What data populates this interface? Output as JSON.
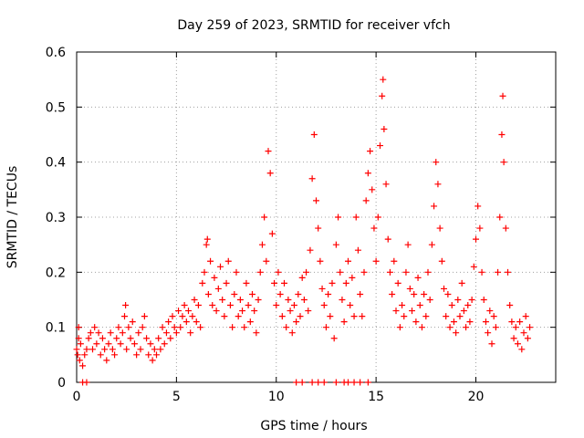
{
  "chart_data": {
    "type": "scatter",
    "title": "Day 259 of 2023, SRMTID for receiver vfch",
    "xlabel": "GPS time / hours",
    "ylabel": "SRMTID / TECUs",
    "xlim": [
      0,
      24
    ],
    "ylim": [
      0,
      0.6
    ],
    "x_ticks": [
      {
        "value": 0,
        "label": "0"
      },
      {
        "value": 5,
        "label": "5"
      },
      {
        "value": 10,
        "label": "10"
      },
      {
        "value": 15,
        "label": "15"
      },
      {
        "value": 20,
        "label": "20"
      }
    ],
    "y_ticks": [
      {
        "value": 0,
        "label": "0"
      },
      {
        "value": 0.1,
        "label": "0.1"
      },
      {
        "value": 0.2,
        "label": "0.2"
      },
      {
        "value": 0.3,
        "label": "0.3"
      },
      {
        "value": 0.4,
        "label": "0.4"
      },
      {
        "value": 0.5,
        "label": "0.5"
      },
      {
        "value": 0.6,
        "label": "0.6"
      }
    ],
    "grid": true,
    "marker": "+",
    "marker_color": "#ff0000",
    "series": [
      {
        "name": "SRMTID",
        "points": [
          [
            0.0,
            0.06
          ],
          [
            0.05,
            0.05
          ],
          [
            0.1,
            0.08
          ],
          [
            0.1,
            0.1
          ],
          [
            0.15,
            0.04
          ],
          [
            0.2,
            0.07
          ],
          [
            0.3,
            0.03
          ],
          [
            0.4,
            0.05
          ],
          [
            0.5,
            0.06
          ],
          [
            0.6,
            0.08
          ],
          [
            0.7,
            0.09
          ],
          [
            0.8,
            0.06
          ],
          [
            0.9,
            0.1
          ],
          [
            1.0,
            0.07
          ],
          [
            1.1,
            0.09
          ],
          [
            1.2,
            0.05
          ],
          [
            1.3,
            0.08
          ],
          [
            1.4,
            0.06
          ],
          [
            1.5,
            0.04
          ],
          [
            1.6,
            0.07
          ],
          [
            1.7,
            0.09
          ],
          [
            1.8,
            0.06
          ],
          [
            1.9,
            0.05
          ],
          [
            2.0,
            0.08
          ],
          [
            2.1,
            0.1
          ],
          [
            2.2,
            0.07
          ],
          [
            2.3,
            0.09
          ],
          [
            2.4,
            0.12
          ],
          [
            2.45,
            0.14
          ],
          [
            2.5,
            0.06
          ],
          [
            2.6,
            0.1
          ],
          [
            2.7,
            0.08
          ],
          [
            2.8,
            0.11
          ],
          [
            2.9,
            0.07
          ],
          [
            3.0,
            0.05
          ],
          [
            3.1,
            0.09
          ],
          [
            3.2,
            0.06
          ],
          [
            3.3,
            0.1
          ],
          [
            3.4,
            0.12
          ],
          [
            3.5,
            0.08
          ],
          [
            3.6,
            0.05
          ],
          [
            3.7,
            0.07
          ],
          [
            3.8,
            0.04
          ],
          [
            3.9,
            0.06
          ],
          [
            4.0,
            0.05
          ],
          [
            4.1,
            0.08
          ],
          [
            4.2,
            0.06
          ],
          [
            4.3,
            0.1
          ],
          [
            4.4,
            0.07
          ],
          [
            4.5,
            0.09
          ],
          [
            4.6,
            0.11
          ],
          [
            4.7,
            0.08
          ],
          [
            4.8,
            0.12
          ],
          [
            4.9,
            0.1
          ],
          [
            5.0,
            0.09
          ],
          [
            5.1,
            0.13
          ],
          [
            5.2,
            0.1
          ],
          [
            5.3,
            0.12
          ],
          [
            5.4,
            0.14
          ],
          [
            5.5,
            0.11
          ],
          [
            5.6,
            0.13
          ],
          [
            5.7,
            0.09
          ],
          [
            5.8,
            0.12
          ],
          [
            5.9,
            0.15
          ],
          [
            6.0,
            0.11
          ],
          [
            6.1,
            0.14
          ],
          [
            6.2,
            0.1
          ],
          [
            6.3,
            0.18
          ],
          [
            6.4,
            0.2
          ],
          [
            6.5,
            0.25
          ],
          [
            6.55,
            0.26
          ],
          [
            6.6,
            0.16
          ],
          [
            6.7,
            0.22
          ],
          [
            6.8,
            0.14
          ],
          [
            6.9,
            0.19
          ],
          [
            7.0,
            0.13
          ],
          [
            7.1,
            0.17
          ],
          [
            7.2,
            0.21
          ],
          [
            7.3,
            0.15
          ],
          [
            7.4,
            0.12
          ],
          [
            7.5,
            0.18
          ],
          [
            7.6,
            0.22
          ],
          [
            7.7,
            0.14
          ],
          [
            7.8,
            0.1
          ],
          [
            7.9,
            0.16
          ],
          [
            8.0,
            0.2
          ],
          [
            8.1,
            0.12
          ],
          [
            8.2,
            0.15
          ],
          [
            8.3,
            0.13
          ],
          [
            8.4,
            0.1
          ],
          [
            8.5,
            0.18
          ],
          [
            8.6,
            0.14
          ],
          [
            8.7,
            0.11
          ],
          [
            8.8,
            0.16
          ],
          [
            8.9,
            0.13
          ],
          [
            9.0,
            0.09
          ],
          [
            9.1,
            0.15
          ],
          [
            9.2,
            0.2
          ],
          [
            9.3,
            0.25
          ],
          [
            9.4,
            0.3
          ],
          [
            9.5,
            0.22
          ],
          [
            9.6,
            0.42
          ],
          [
            9.7,
            0.38
          ],
          [
            9.8,
            0.27
          ],
          [
            9.9,
            0.18
          ],
          [
            10.0,
            0.14
          ],
          [
            10.1,
            0.2
          ],
          [
            10.2,
            0.16
          ],
          [
            10.3,
            0.12
          ],
          [
            10.4,
            0.18
          ],
          [
            10.5,
            0.1
          ],
          [
            10.6,
            0.15
          ],
          [
            10.7,
            0.13
          ],
          [
            10.8,
            0.09
          ],
          [
            10.9,
            0.14
          ],
          [
            11.0,
            0.11
          ],
          [
            11.1,
            0.16
          ],
          [
            11.2,
            0.12
          ],
          [
            11.3,
            0.19
          ],
          [
            11.4,
            0.15
          ],
          [
            11.5,
            0.2
          ],
          [
            11.6,
            0.13
          ],
          [
            11.7,
            0.24
          ],
          [
            11.8,
            0.37
          ],
          [
            11.9,
            0.45
          ],
          [
            12.0,
            0.33
          ],
          [
            12.1,
            0.28
          ],
          [
            12.2,
            0.22
          ],
          [
            12.3,
            0.17
          ],
          [
            12.4,
            0.14
          ],
          [
            12.5,
            0.1
          ],
          [
            12.6,
            0.16
          ],
          [
            12.7,
            0.12
          ],
          [
            12.8,
            0.18
          ],
          [
            12.9,
            0.08
          ],
          [
            13.0,
            0.25
          ],
          [
            13.1,
            0.3
          ],
          [
            13.2,
            0.2
          ],
          [
            13.3,
            0.15
          ],
          [
            13.4,
            0.11
          ],
          [
            13.5,
            0.18
          ],
          [
            13.6,
            0.22
          ],
          [
            13.7,
            0.14
          ],
          [
            13.8,
            0.19
          ],
          [
            13.9,
            0.12
          ],
          [
            14.0,
            0.3
          ],
          [
            14.1,
            0.24
          ],
          [
            14.2,
            0.16
          ],
          [
            14.3,
            0.12
          ],
          [
            14.4,
            0.2
          ],
          [
            14.5,
            0.33
          ],
          [
            14.6,
            0.38
          ],
          [
            14.7,
            0.42
          ],
          [
            14.8,
            0.35
          ],
          [
            14.9,
            0.28
          ],
          [
            15.0,
            0.22
          ],
          [
            15.1,
            0.3
          ],
          [
            15.2,
            0.43
          ],
          [
            15.3,
            0.52
          ],
          [
            15.35,
            0.55
          ],
          [
            15.4,
            0.46
          ],
          [
            15.5,
            0.36
          ],
          [
            15.6,
            0.26
          ],
          [
            15.7,
            0.2
          ],
          [
            15.8,
            0.16
          ],
          [
            15.9,
            0.22
          ],
          [
            16.0,
            0.13
          ],
          [
            16.1,
            0.18
          ],
          [
            16.2,
            0.1
          ],
          [
            16.3,
            0.14
          ],
          [
            16.4,
            0.12
          ],
          [
            16.5,
            0.2
          ],
          [
            16.6,
            0.25
          ],
          [
            16.7,
            0.17
          ],
          [
            16.8,
            0.13
          ],
          [
            16.9,
            0.16
          ],
          [
            17.0,
            0.11
          ],
          [
            17.1,
            0.19
          ],
          [
            17.2,
            0.14
          ],
          [
            17.3,
            0.1
          ],
          [
            17.4,
            0.16
          ],
          [
            17.5,
            0.12
          ],
          [
            17.6,
            0.2
          ],
          [
            17.7,
            0.15
          ],
          [
            17.8,
            0.25
          ],
          [
            17.9,
            0.32
          ],
          [
            18.0,
            0.4
          ],
          [
            18.1,
            0.36
          ],
          [
            18.2,
            0.28
          ],
          [
            18.3,
            0.22
          ],
          [
            18.4,
            0.17
          ],
          [
            18.5,
            0.12
          ],
          [
            18.6,
            0.16
          ],
          [
            18.7,
            0.1
          ],
          [
            18.8,
            0.14
          ],
          [
            18.9,
            0.11
          ],
          [
            19.0,
            0.09
          ],
          [
            19.1,
            0.15
          ],
          [
            19.2,
            0.12
          ],
          [
            19.3,
            0.18
          ],
          [
            19.4,
            0.13
          ],
          [
            19.5,
            0.1
          ],
          [
            19.6,
            0.14
          ],
          [
            19.7,
            0.11
          ],
          [
            19.8,
            0.15
          ],
          [
            19.9,
            0.21
          ],
          [
            20.0,
            0.26
          ],
          [
            20.1,
            0.32
          ],
          [
            20.2,
            0.28
          ],
          [
            20.3,
            0.2
          ],
          [
            20.4,
            0.15
          ],
          [
            20.5,
            0.11
          ],
          [
            20.6,
            0.09
          ],
          [
            20.7,
            0.13
          ],
          [
            20.8,
            0.07
          ],
          [
            20.9,
            0.12
          ],
          [
            21.0,
            0.1
          ],
          [
            21.1,
            0.2
          ],
          [
            21.2,
            0.3
          ],
          [
            21.3,
            0.45
          ],
          [
            21.35,
            0.52
          ],
          [
            21.4,
            0.4
          ],
          [
            21.5,
            0.28
          ],
          [
            21.6,
            0.2
          ],
          [
            21.7,
            0.14
          ],
          [
            21.8,
            0.11
          ],
          [
            21.9,
            0.08
          ],
          [
            22.0,
            0.1
          ],
          [
            22.1,
            0.07
          ],
          [
            22.2,
            0.11
          ],
          [
            22.3,
            0.06
          ],
          [
            22.4,
            0.09
          ],
          [
            22.5,
            0.12
          ],
          [
            22.6,
            0.08
          ],
          [
            22.7,
            0.1
          ],
          [
            0.3,
            0.0
          ],
          [
            0.5,
            0.0
          ],
          [
            11.0,
            0.0
          ],
          [
            11.3,
            0.0
          ],
          [
            11.8,
            0.0
          ],
          [
            12.1,
            0.0
          ],
          [
            12.4,
            0.0
          ],
          [
            13.0,
            0.0
          ],
          [
            13.4,
            0.0
          ],
          [
            13.6,
            0.0
          ],
          [
            13.9,
            0.0
          ],
          [
            14.2,
            0.0
          ],
          [
            14.6,
            0.0
          ]
        ]
      }
    ]
  }
}
